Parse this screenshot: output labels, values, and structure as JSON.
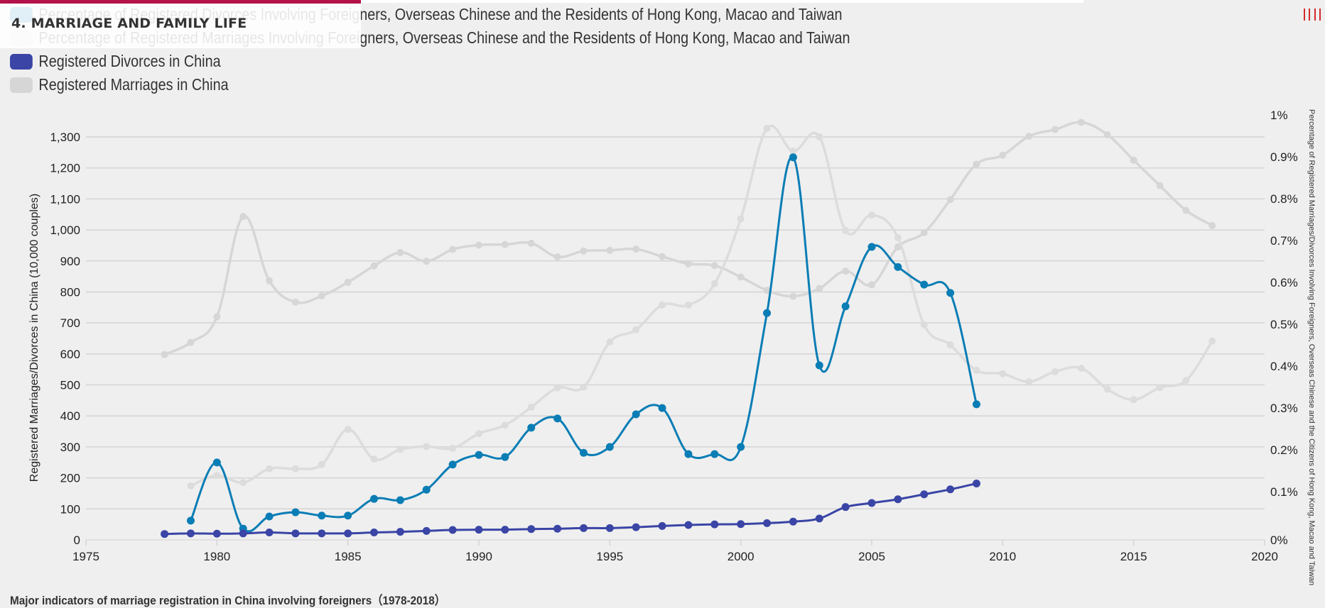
{
  "header": {
    "section_title": "4. MARRIAGE AND FAMILY LIFE",
    "menu_icon": "menu-bars-icon",
    "accent_color": "#b3134a"
  },
  "legend": [
    {
      "label": "Percentage of Registered Divorces Involving Foreigners, Overseas Chinese and the Residents of Hong Kong, Macao and Taiwan",
      "color": "#0a7db5"
    },
    {
      "label": "Percentage of Registered Marriages Involving Foreigners, Overseas Chinese and the Residents of Hong Kong, Macao and Taiwan",
      "color": "#d9d9d9"
    },
    {
      "label": "Registered Divorces in China",
      "color": "#3a45a6"
    },
    {
      "label": "Registered Marriages in China",
      "color": "#d6d6d6"
    }
  ],
  "caption": "Major indicators of marriage registration in China involving foreigners（1978-2018）",
  "chart_data": {
    "type": "line",
    "title": "Major indicators of marriage registration in China involving foreigners（1978-2018）",
    "xlabel": "",
    "ylabel": "Registered Marriages/Divorces in China (10,000 couples)",
    "y2label": "Percentage of Registered Marriages/Divorces Involving Foreigners, Overseas Chinese and the Citizens of Hong Kong, Macao and Taiwan",
    "xlim": [
      1975,
      2020
    ],
    "xticks": [
      "1975",
      "1980",
      "1985",
      "1990",
      "1995",
      "2000",
      "2005",
      "2010",
      "2015",
      "2020"
    ],
    "ylim": [
      0,
      1300
    ],
    "yticks": [
      "0",
      "100",
      "200",
      "300",
      "400",
      "500",
      "600",
      "700",
      "800",
      "900",
      "1,000",
      "1,100",
      "1,200",
      "1,300"
    ],
    "y2lim": [
      0,
      1
    ],
    "y2ticks": [
      "0%",
      "0.1%",
      "0.2%",
      "0.3%",
      "0.4%",
      "0.5%",
      "0.6%",
      "0.7%",
      "0.8%",
      "0.9%",
      "1%"
    ],
    "grid": true,
    "legend_position": "top-left",
    "series": [
      {
        "name": "Registered Marriages in China",
        "axis": "left",
        "color": "#d6d6d6",
        "x": [
          1978,
          1979,
          1980,
          1981,
          1982,
          1983,
          1984,
          1985,
          1986,
          1987,
          1988,
          1989,
          1990,
          1991,
          1992,
          1993,
          1994,
          1995,
          1996,
          1997,
          1998,
          1999,
          2000,
          2001,
          2002,
          2003,
          2004,
          2005,
          2006,
          2007,
          2008,
          2009,
          2010,
          2011,
          2012,
          2013,
          2014,
          2015,
          2016,
          2017,
          2018
        ],
        "values": [
          598,
          637,
          720,
          1043,
          836,
          767,
          787,
          831,
          884,
          927,
          899,
          937,
          951,
          953,
          957,
          913,
          932,
          934,
          938,
          914,
          891,
          885,
          848,
          805,
          786,
          811,
          867,
          823,
          945,
          991,
          1098,
          1212,
          1241,
          1302,
          1324,
          1347,
          1307,
          1225,
          1143,
          1063,
          1014
        ]
      },
      {
        "name": "Percentage of Registered Marriages Involving Foreigners, Overseas Chinese and the Residents of Hong Kong, Macao and Taiwan",
        "axis": "right",
        "color": "#dcdcdc",
        "x": [
          1979,
          1980,
          1981,
          1982,
          1983,
          1984,
          1985,
          1986,
          1987,
          1988,
          1989,
          1990,
          1991,
          1992,
          1993,
          1994,
          1995,
          1996,
          1997,
          1998,
          1999,
          2000,
          2001,
          2002,
          2003,
          2004,
          2005,
          2006,
          2007,
          2008,
          2009,
          2010,
          2011,
          2012,
          2013,
          2014,
          2015,
          2016,
          2017,
          2018
        ],
        "values": [
          0.129,
          0.154,
          0.137,
          0.17,
          0.17,
          0.18,
          0.264,
          0.193,
          0.216,
          0.223,
          0.219,
          0.254,
          0.274,
          0.317,
          0.363,
          0.365,
          0.473,
          0.502,
          0.561,
          0.561,
          0.612,
          0.767,
          0.983,
          0.929,
          0.963,
          0.739,
          0.776,
          0.722,
          0.514,
          0.466,
          0.405,
          0.397,
          0.378,
          0.402,
          0.41,
          0.36,
          0.335,
          0.364,
          0.381,
          0.475
        ]
      },
      {
        "name": "Percentage of Registered Divorces Involving Foreigners, Overseas Chinese and the Residents of Hong Kong, Macao and Taiwan",
        "axis": "right",
        "color": "#0a7db5",
        "x": [
          1979,
          1980,
          1981,
          1982,
          1983,
          1984,
          1985,
          1986,
          1987,
          1988,
          1989,
          1990,
          1991,
          1992,
          1993,
          1994,
          1995,
          1996,
          1997,
          1998,
          1999,
          2000,
          2001,
          2002,
          2003,
          2004,
          2005,
          2006,
          2007,
          2008,
          2009
        ],
        "values": [
          0.046,
          0.185,
          0.027,
          0.056,
          0.066,
          0.058,
          0.058,
          0.098,
          0.095,
          0.12,
          0.18,
          0.203,
          0.198,
          0.268,
          0.29,
          0.208,
          0.222,
          0.3,
          0.315,
          0.205,
          0.205,
          0.222,
          0.542,
          0.914,
          0.417,
          0.558,
          0.7,
          0.652,
          0.61,
          0.59,
          0.324
        ]
      },
      {
        "name": "Registered Divorces in China",
        "axis": "left",
        "color": "#3a45a6",
        "x": [
          1978,
          1979,
          1980,
          1981,
          1982,
          1983,
          1984,
          1985,
          1986,
          1987,
          1988,
          1989,
          1990,
          1991,
          1992,
          1993,
          1994,
          1995,
          1996,
          1997,
          1998,
          1999,
          2000,
          2001,
          2002,
          2003,
          2004,
          2005,
          2006,
          2007,
          2008,
          2009
        ],
        "values": [
          19,
          21,
          20,
          21,
          24,
          21,
          21,
          21,
          24,
          26,
          29,
          32,
          33,
          33,
          35,
          36,
          38,
          38,
          41,
          45,
          48,
          50,
          51,
          54,
          59,
          69,
          106,
          119,
          131,
          147,
          163,
          182
        ]
      }
    ]
  }
}
